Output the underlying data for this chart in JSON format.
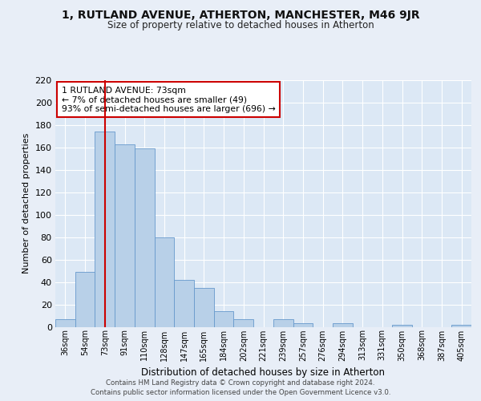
{
  "title": "1, RUTLAND AVENUE, ATHERTON, MANCHESTER, M46 9JR",
  "subtitle": "Size of property relative to detached houses in Atherton",
  "xlabel": "Distribution of detached houses by size in Atherton",
  "ylabel": "Number of detached properties",
  "bar_labels": [
    "36sqm",
    "54sqm",
    "73sqm",
    "91sqm",
    "110sqm",
    "128sqm",
    "147sqm",
    "165sqm",
    "184sqm",
    "202sqm",
    "221sqm",
    "239sqm",
    "257sqm",
    "276sqm",
    "294sqm",
    "313sqm",
    "331sqm",
    "350sqm",
    "368sqm",
    "387sqm",
    "405sqm"
  ],
  "bar_values": [
    7,
    49,
    174,
    163,
    159,
    80,
    42,
    35,
    14,
    7,
    0,
    7,
    3,
    0,
    3,
    0,
    0,
    2,
    0,
    0,
    2
  ],
  "bar_color": "#b8d0e8",
  "bar_edge_color": "#6699cc",
  "background_color": "#e8eef7",
  "plot_bg_color": "#dce8f5",
  "grid_color": "#ffffff",
  "vline_x": 2,
  "vline_color": "#cc0000",
  "annotation_text": "1 RUTLAND AVENUE: 73sqm\n← 7% of detached houses are smaller (49)\n93% of semi-detached houses are larger (696) →",
  "annotation_box_color": "#ffffff",
  "annotation_box_edge": "#cc0000",
  "ylim": [
    0,
    220
  ],
  "yticks": [
    0,
    20,
    40,
    60,
    80,
    100,
    120,
    140,
    160,
    180,
    200,
    220
  ],
  "footer_line1": "Contains HM Land Registry data © Crown copyright and database right 2024.",
  "footer_line2": "Contains public sector information licensed under the Open Government Licence v3.0."
}
